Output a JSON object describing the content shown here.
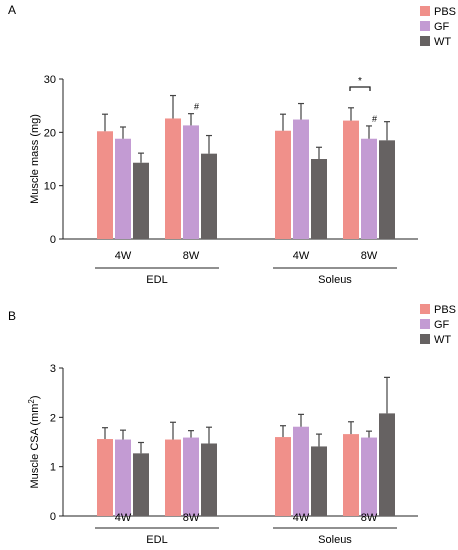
{
  "colors": {
    "PBS": "#f0908a",
    "GF": "#c39bd3",
    "WT": "#666262",
    "axis": "#222222",
    "error_bar": "#444444"
  },
  "chart_data": [
    {
      "panel": "A",
      "type": "bar",
      "ylabel": "Muscle mass (mg)",
      "ylim": [
        0,
        30
      ],
      "yticks": [
        0,
        10,
        20,
        30
      ],
      "legend": {
        "entries": [
          "PBS",
          "GF",
          "WT"
        ],
        "placement": "top-right"
      },
      "groups": [
        {
          "muscle": "EDL",
          "timepoint": "4W",
          "values": [
            20.2,
            18.8,
            14.3
          ],
          "errors": [
            3.2,
            2.2,
            1.8
          ],
          "marks": [
            "",
            "",
            ""
          ]
        },
        {
          "muscle": "EDL",
          "timepoint": "8W",
          "values": [
            22.6,
            21.3,
            16.0
          ],
          "errors": [
            4.3,
            2.2,
            3.4
          ],
          "marks": [
            "",
            "#",
            ""
          ]
        },
        {
          "muscle": "Soleus",
          "timepoint": "4W",
          "values": [
            20.3,
            22.4,
            15.0
          ],
          "errors": [
            3.1,
            3.0,
            2.2
          ],
          "marks": [
            "",
            "",
            ""
          ]
        },
        {
          "muscle": "Soleus",
          "timepoint": "8W",
          "values": [
            22.2,
            18.8,
            18.5
          ],
          "errors": [
            2.4,
            2.4,
            3.5
          ],
          "marks": [
            "",
            "#",
            ""
          ]
        }
      ],
      "significance": [
        {
          "label": "*",
          "group": 3,
          "between": [
            "PBS",
            "GF"
          ]
        }
      ],
      "muscles": [
        "EDL",
        "Soleus"
      ]
    },
    {
      "panel": "B",
      "type": "bar",
      "ylabel_parts": [
        "Muscle CSA (mm",
        "2",
        ")"
      ],
      "ylim": [
        0,
        3
      ],
      "yticks": [
        0,
        1,
        2,
        3
      ],
      "legend": {
        "entries": [
          "PBS",
          "GF",
          "WT"
        ],
        "placement": "top-right"
      },
      "groups": [
        {
          "muscle": "EDL",
          "timepoint": "4W",
          "values": [
            1.56,
            1.55,
            1.27
          ],
          "errors": [
            0.23,
            0.19,
            0.22
          ],
          "marks": [
            "",
            "",
            ""
          ]
        },
        {
          "muscle": "EDL",
          "timepoint": "8W",
          "values": [
            1.55,
            1.59,
            1.47
          ],
          "errors": [
            0.35,
            0.14,
            0.33
          ],
          "marks": [
            "",
            "",
            ""
          ]
        },
        {
          "muscle": "Soleus",
          "timepoint": "4W",
          "values": [
            1.6,
            1.81,
            1.41
          ],
          "errors": [
            0.23,
            0.25,
            0.25
          ],
          "marks": [
            "",
            "",
            ""
          ]
        },
        {
          "muscle": "Soleus",
          "timepoint": "8W",
          "values": [
            1.66,
            1.59,
            2.08
          ],
          "errors": [
            0.25,
            0.13,
            0.73
          ],
          "marks": [
            "",
            "",
            ""
          ]
        }
      ],
      "muscles": [
        "EDL",
        "Soleus"
      ]
    }
  ]
}
